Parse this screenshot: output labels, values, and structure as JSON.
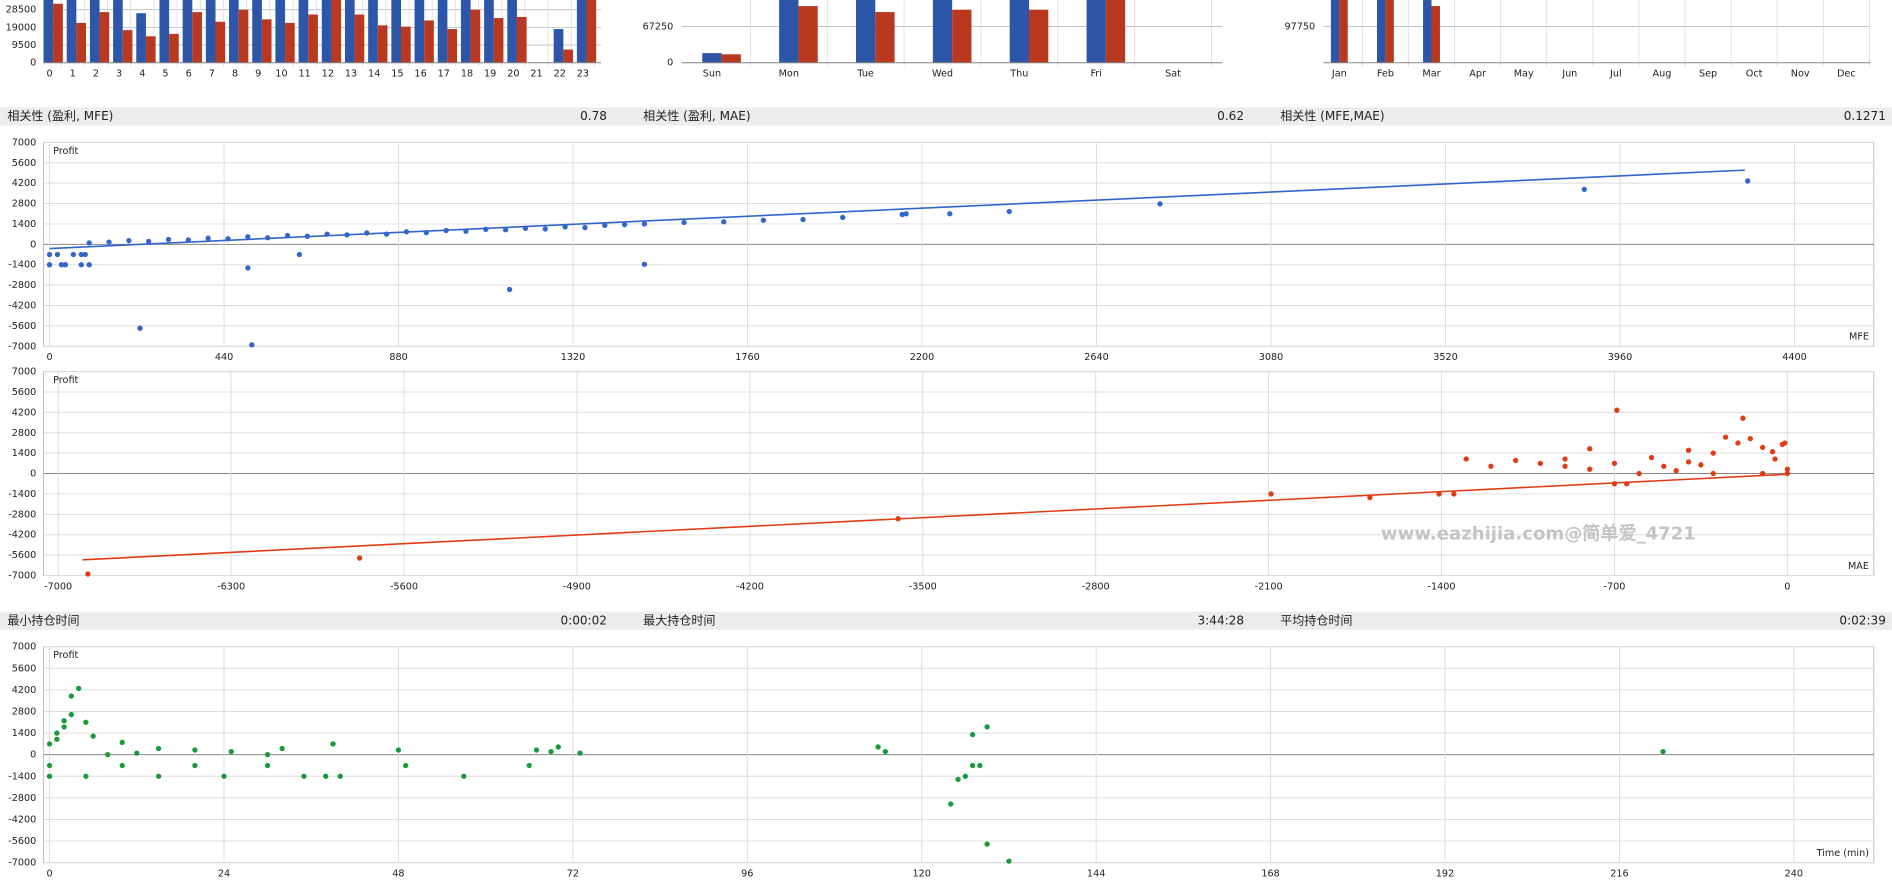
{
  "chart_data": [
    {
      "type": "bar",
      "categories": [
        "0",
        "1",
        "2",
        "3",
        "4",
        "5",
        "6",
        "7",
        "8",
        "9",
        "10",
        "11",
        "12",
        "13",
        "14",
        "15",
        "16",
        "17",
        "18",
        "19",
        "20",
        "21",
        "22",
        "23"
      ],
      "series": [
        {
          "color": "#2e56a8",
          "values": [
            33700,
            33700,
            33700,
            33700,
            26600,
            33700,
            33700,
            33700,
            33700,
            33700,
            33700,
            33700,
            33700,
            33700,
            33700,
            33700,
            33700,
            33700,
            33700,
            33700,
            33700,
            0,
            18100,
            33700
          ]
        },
        {
          "color": "#b8391f",
          "values": [
            31700,
            21400,
            27200,
            17500,
            14200,
            15500,
            27200,
            22000,
            28500,
            23300,
            21400,
            25900,
            33700,
            25900,
            20100,
            19400,
            22700,
            18100,
            28500,
            24000,
            24600,
            0,
            7100,
            33700
          ]
        }
      ],
      "ylim": [
        0,
        33700
      ],
      "yticks": [
        0,
        9500,
        19000,
        28500
      ],
      "grid": true
    },
    {
      "type": "bar",
      "categories": [
        "Sun",
        "Mon",
        "Tue",
        "Wed",
        "Thu",
        "Fri",
        "Sat"
      ],
      "series": [
        {
          "color": "#2e56a8",
          "values": [
            17900,
            116600,
            116600,
            116600,
            116600,
            116600,
            0
          ]
        },
        {
          "color": "#b8391f",
          "values": [
            15700,
            105300,
            94200,
            98600,
            98600,
            116600,
            0
          ]
        }
      ],
      "ylim": [
        0,
        116600
      ],
      "yticks": [
        0,
        67250
      ],
      "grid": true
    },
    {
      "type": "bar",
      "categories": [
        "Jan",
        "Feb",
        "Mar",
        "Apr",
        "May",
        "Jun",
        "Jul",
        "Aug",
        "Sep",
        "Oct",
        "Nov",
        "Dec"
      ],
      "series": [
        {
          "color": "#2e56a8",
          "values": [
            169400,
            169400,
            169400,
            0,
            0,
            0,
            0,
            0,
            0,
            0,
            0,
            0
          ]
        },
        {
          "color": "#b8391f",
          "values": [
            169400,
            169400,
            153100,
            0,
            0,
            0,
            0,
            0,
            0,
            0,
            0,
            0
          ]
        }
      ],
      "ylim": [
        0,
        169400
      ],
      "yticks": [
        97750
      ],
      "grid": true
    },
    {
      "type": "scatter",
      "y_label": "Profit",
      "x_label": "MFE",
      "xlim": [
        0,
        4600
      ],
      "ylim": [
        -7000,
        7000
      ],
      "xticks": [
        0,
        440,
        880,
        1320,
        1760,
        2200,
        2640,
        3080,
        3520,
        3960,
        4400
      ],
      "yticks": [
        -7000,
        -5600,
        -4200,
        -2800,
        -1400,
        0,
        1400,
        2800,
        4200,
        5600,
        7000
      ],
      "grid": true,
      "series": [
        {
          "color": "#3366cc",
          "kind": "points",
          "x": [
            0,
            20,
            60,
            80,
            0,
            40,
            80,
            100,
            90,
            30,
            100,
            200,
            300,
            400,
            500,
            600,
            700,
            800,
            900,
            1000,
            1100,
            1200,
            1300,
            1400,
            1450,
            1500,
            1600,
            1700,
            1800,
            1900,
            2000,
            2150,
            2160,
            2270,
            2420,
            2800,
            3870,
            4282,
            228,
            510,
            500,
            630,
            1160,
            1500,
            150,
            250,
            350,
            450,
            550,
            650,
            750,
            850,
            950,
            1050,
            1150,
            1250,
            1350
          ],
          "values": [
            -700,
            -700,
            -700,
            -700,
            -1400,
            -1400,
            -1400,
            -1400,
            -700,
            -1400,
            100,
            250,
            330,
            420,
            520,
            600,
            700,
            780,
            860,
            950,
            1030,
            1100,
            1200,
            1300,
            1350,
            1400,
            1500,
            1550,
            1650,
            1700,
            1850,
            2050,
            2100,
            2100,
            2250,
            2775,
            3770,
            4350,
            -5760,
            -6900,
            -1615,
            -700,
            -3100,
            -1370,
            150,
            200,
            300,
            380,
            450,
            550,
            650,
            700,
            800,
            900,
            1000,
            1050,
            1150
          ]
        },
        {
          "color": "#3366cc",
          "kind": "line",
          "x": [
            0,
            4275
          ],
          "values": [
            -290,
            5095
          ]
        }
      ]
    },
    {
      "type": "scatter",
      "y_label": "Profit",
      "x_label": "MAE",
      "xlim": [
        -7035,
        350
      ],
      "ylim": [
        -7000,
        7000
      ],
      "xticks": [
        -7000,
        -6300,
        -5600,
        -4900,
        -4200,
        -3500,
        -2800,
        -2100,
        -1400,
        -700,
        0
      ],
      "yticks": [
        -7000,
        -5600,
        -4200,
        -2800,
        -1400,
        0,
        1400,
        2800,
        4200,
        5600,
        7000
      ],
      "grid": true,
      "series": [
        {
          "color": "#e03c14",
          "kind": "points",
          "x": [
            -6880,
            -5780,
            -3600,
            -2090,
            -1690,
            -1410,
            -1350,
            -1300,
            -1000,
            -900,
            -800,
            -700,
            -700,
            -650,
            -690,
            -180,
            -500,
            -400,
            -300,
            -200,
            -100,
            -50,
            0,
            -20,
            -150,
            -900,
            -1200,
            -1100,
            -800,
            -600,
            -300,
            -100,
            0,
            -400,
            -250,
            -350,
            -550,
            -450,
            -60,
            -10
          ],
          "values": [
            -6900,
            -5800,
            -3100,
            -1400,
            -1650,
            -1400,
            -1400,
            1000,
            700,
            1000,
            1700,
            700,
            -700,
            -700,
            4350,
            3800,
            500,
            800,
            1400,
            2100,
            1800,
            1000,
            300,
            2000,
            2400,
            500,
            500,
            900,
            300,
            0,
            0,
            0,
            0,
            1600,
            2500,
            600,
            1100,
            200,
            1500,
            2100
          ]
        },
        {
          "color": "#e03c14",
          "kind": "line",
          "x": [
            -6902,
            0
          ],
          "values": [
            -5923,
            -50
          ]
        }
      ]
    },
    {
      "type": "scatter",
      "y_label": "Profit",
      "x_label": "Time (min)",
      "xlim": [
        0,
        251
      ],
      "ylim": [
        -7000,
        7000
      ],
      "xticks": [
        0,
        24,
        48,
        72,
        96,
        120,
        144,
        168,
        192,
        216,
        240
      ],
      "yticks": [
        -7000,
        -5600,
        -4200,
        -2800,
        -1400,
        0,
        1400,
        2800,
        4200,
        5600,
        7000
      ],
      "grid": true,
      "series": [
        {
          "color": "#1a9a3a",
          "kind": "points",
          "x": [
            3,
            4,
            2,
            1,
            0,
            0,
            0,
            5,
            10,
            15,
            20,
            25,
            30,
            32,
            39,
            35,
            38,
            48,
            49,
            57,
            66,
            67,
            69,
            70,
            73,
            114,
            115,
            124,
            125,
            126,
            127,
            128,
            127,
            129,
            129,
            132,
            222,
            10,
            20,
            24,
            30,
            40,
            5,
            15,
            8,
            12,
            2,
            1,
            3,
            6
          ],
          "values": [
            3800,
            4300,
            2200,
            1400,
            700,
            -700,
            -1400,
            2100,
            800,
            400,
            300,
            200,
            0,
            400,
            700,
            -1400,
            -1400,
            300,
            -700,
            -1400,
            -700,
            300,
            200,
            500,
            100,
            500,
            200,
            -3200,
            -1600,
            -1400,
            -700,
            -700,
            1300,
            1800,
            -5800,
            -6900,
            200,
            -700,
            -700,
            -1400,
            -700,
            -1400,
            -1400,
            -1400,
            0,
            100,
            1800,
            1000,
            2600,
            1200
          ]
        }
      ]
    }
  ],
  "stats": [
    [
      {
        "label": "相关性 (盈利, MFE)",
        "value": "0.78"
      },
      {
        "label": "相关性 (盈利, MAE)",
        "value": "0.62"
      },
      {
        "label": "相关性 (MFE,MAE)",
        "value": "0.1271"
      }
    ],
    [
      {
        "label": "最小持仓时间",
        "value": "0:00:02"
      },
      {
        "label": "最大持仓时间",
        "value": "3:44:28"
      },
      {
        "label": "平均持仓时间",
        "value": "0:02:39"
      }
    ]
  ],
  "watermark": "www.eazhijia.com@简单爱_4721"
}
